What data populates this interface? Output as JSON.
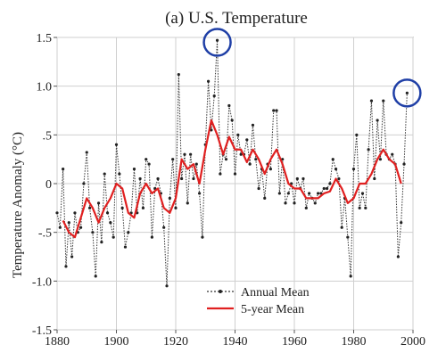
{
  "chart_data": {
    "type": "line",
    "title": "(a)  U.S. Temperature",
    "xlabel": "",
    "ylabel": "Temperature Anomaly (°C)",
    "xlim": [
      1880,
      2000
    ],
    "ylim": [
      -1.5,
      1.5
    ],
    "x_ticks": [
      1880,
      1900,
      1920,
      1940,
      1960,
      1980,
      2000
    ],
    "x_tick_labels": [
      "1880",
      "1900",
      "1920",
      "1940",
      "1960",
      "1980",
      "2000"
    ],
    "y_ticks": [
      1.5,
      1.0,
      0.5,
      0,
      -0.5,
      -1.0,
      -1.5
    ],
    "y_tick_labels": [
      "1.5",
      "1.0",
      ".5",
      "0",
      "-.5",
      "-1.0",
      "-1.5"
    ],
    "grid": true,
    "legend": "bottom-right",
    "series": [
      {
        "name": "Annual Mean",
        "color": "#333333",
        "style": "dotted-with-points",
        "x": [
          1880,
          1881,
          1882,
          1883,
          1884,
          1885,
          1886,
          1887,
          1888,
          1889,
          1890,
          1891,
          1892,
          1893,
          1894,
          1895,
          1896,
          1897,
          1898,
          1899,
          1900,
          1901,
          1902,
          1903,
          1904,
          1905,
          1906,
          1907,
          1908,
          1909,
          1910,
          1911,
          1912,
          1913,
          1914,
          1915,
          1916,
          1917,
          1918,
          1919,
          1920,
          1921,
          1922,
          1923,
          1924,
          1925,
          1926,
          1927,
          1928,
          1929,
          1930,
          1931,
          1932,
          1933,
          1934,
          1935,
          1936,
          1937,
          1938,
          1939,
          1940,
          1941,
          1942,
          1943,
          1944,
          1945,
          1946,
          1947,
          1948,
          1949,
          1950,
          1951,
          1952,
          1953,
          1954,
          1955,
          1956,
          1957,
          1958,
          1959,
          1960,
          1961,
          1962,
          1963,
          1964,
          1965,
          1966,
          1967,
          1968,
          1969,
          1970,
          1971,
          1972,
          1973,
          1974,
          1975,
          1976,
          1977,
          1978,
          1979,
          1980,
          1981,
          1982,
          1983,
          1984,
          1985,
          1986,
          1987,
          1988,
          1989,
          1990,
          1991,
          1992,
          1993,
          1994,
          1995,
          1996,
          1997,
          1998
        ],
        "y": [
          -0.3,
          -0.45,
          0.15,
          -0.85,
          -0.4,
          -0.75,
          -0.3,
          -0.5,
          -0.45,
          0.0,
          0.32,
          -0.25,
          -0.5,
          -0.95,
          -0.2,
          -0.6,
          0.1,
          -0.3,
          -0.4,
          -0.55,
          0.4,
          0.1,
          -0.25,
          -0.65,
          -0.5,
          -0.3,
          0.15,
          -0.3,
          0.05,
          -0.25,
          0.25,
          0.2,
          -0.55,
          -0.05,
          0.05,
          -0.1,
          -0.45,
          -1.05,
          -0.15,
          0.25,
          -0.25,
          1.12,
          0.05,
          0.3,
          -0.2,
          0.3,
          0.05,
          0.2,
          -0.1,
          -0.55,
          0.4,
          1.05,
          0.55,
          0.9,
          1.47,
          0.1,
          0.3,
          0.25,
          0.8,
          0.65,
          0.1,
          0.5,
          0.3,
          0.3,
          0.45,
          0.2,
          0.6,
          0.25,
          -0.05,
          0.15,
          -0.15,
          0.2,
          0.15,
          0.75,
          0.75,
          -0.1,
          0.25,
          -0.2,
          -0.1,
          0.0,
          -0.2,
          0.05,
          -0.05,
          0.05,
          -0.25,
          -0.1,
          -0.15,
          -0.2,
          -0.1,
          -0.1,
          -0.05,
          -0.05,
          0.0,
          0.25,
          0.15,
          0.05,
          -0.45,
          -0.15,
          -0.55,
          -0.95,
          0.15,
          0.5,
          -0.25,
          -0.1,
          -0.25,
          0.35,
          0.85,
          0.05,
          0.65,
          0.25,
          0.85,
          0.3,
          0.25,
          0.3,
          0.2,
          -0.75,
          -0.4,
          0.2,
          0.93
        ]
      },
      {
        "name": "5-year Mean",
        "color": "#e02020",
        "style": "solid",
        "x": [
          1882,
          1884,
          1886,
          1888,
          1890,
          1892,
          1894,
          1896,
          1898,
          1900,
          1902,
          1904,
          1906,
          1908,
          1910,
          1912,
          1914,
          1916,
          1918,
          1920,
          1922,
          1924,
          1926,
          1928,
          1930,
          1932,
          1934,
          1936,
          1938,
          1940,
          1942,
          1944,
          1946,
          1948,
          1950,
          1952,
          1954,
          1956,
          1958,
          1960,
          1962,
          1964,
          1966,
          1968,
          1970,
          1972,
          1974,
          1976,
          1978,
          1980,
          1982,
          1984,
          1986,
          1988,
          1990,
          1992,
          1994,
          1996
        ],
        "y": [
          -0.38,
          -0.5,
          -0.55,
          -0.35,
          -0.15,
          -0.25,
          -0.4,
          -0.25,
          -0.15,
          0.0,
          -0.05,
          -0.3,
          -0.35,
          -0.1,
          0.0,
          -0.1,
          -0.05,
          -0.25,
          -0.3,
          -0.15,
          0.25,
          0.15,
          0.2,
          0.0,
          0.35,
          0.65,
          0.5,
          0.3,
          0.48,
          0.35,
          0.35,
          0.22,
          0.35,
          0.25,
          0.1,
          0.25,
          0.35,
          0.2,
          0.0,
          -0.05,
          -0.05,
          -0.15,
          -0.15,
          -0.15,
          -0.1,
          -0.08,
          0.05,
          -0.05,
          -0.2,
          -0.15,
          0.0,
          0.0,
          0.1,
          0.25,
          0.35,
          0.25,
          0.2,
          0.0
        ]
      }
    ],
    "annotations": [
      {
        "type": "circle",
        "x": 1934,
        "y": 1.45,
        "color": "#1f3fa6"
      },
      {
        "type": "circle",
        "x": 1998,
        "y": 0.93,
        "color": "#1f3fa6"
      }
    ]
  }
}
